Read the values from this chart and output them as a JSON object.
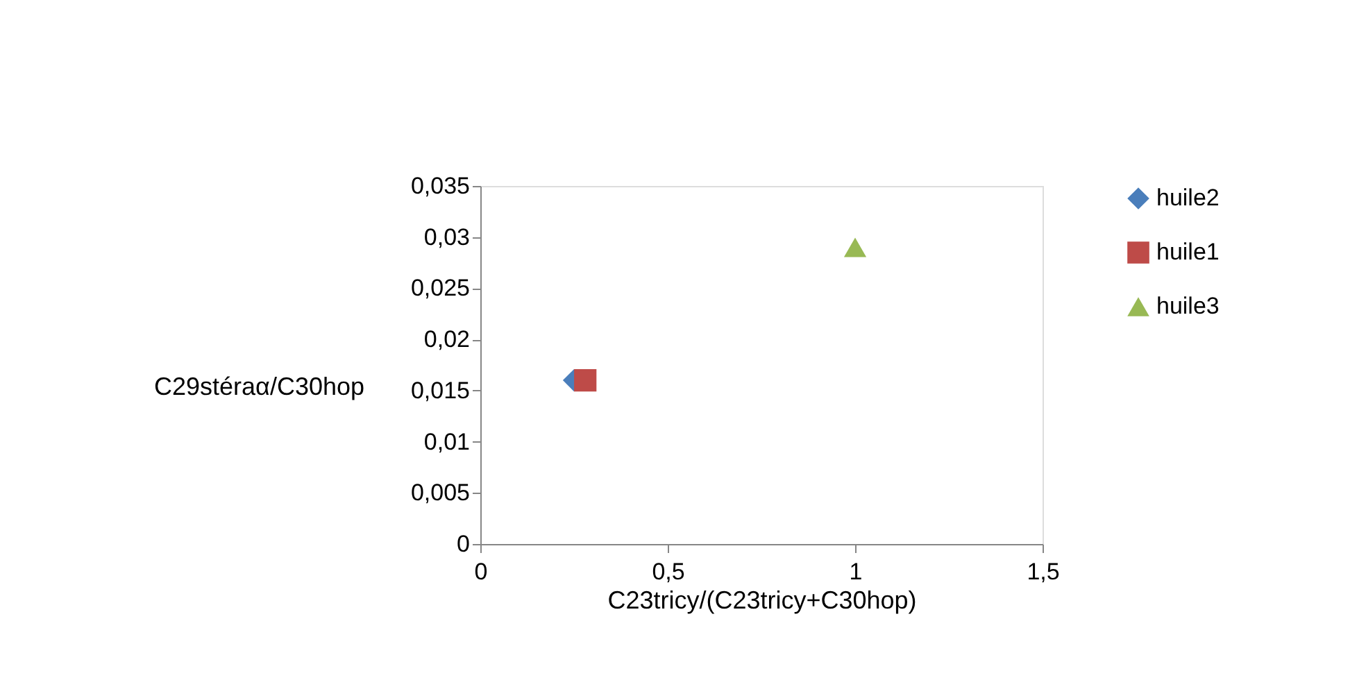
{
  "chart_data": {
    "type": "scatter",
    "xlabel": "C23tricy/(C23tricy+C30hop)",
    "ylabel": "C29stéraα/C30hop",
    "series": [
      {
        "name": "huile2",
        "color": "#4a7ebb",
        "marker": "diamond",
        "x": [
          0.25
        ],
        "values": [
          0.016
        ]
      },
      {
        "name": "huile1",
        "color": "#be4b48",
        "marker": "square",
        "x": [
          0.28
        ],
        "values": [
          0.016
        ]
      },
      {
        "name": "huile3",
        "color": "#98b954",
        "marker": "triangle",
        "x": [
          1.0
        ],
        "values": [
          0.029
        ]
      }
    ],
    "xlim": [
      0,
      1.5
    ],
    "xticks": [
      0,
      {
        "value": 0.5,
        "label": "0,5"
      },
      1,
      {
        "value": 1.5,
        "label": "1,5"
      }
    ],
    "ylim": [
      0,
      0.035
    ],
    "yticks": [
      0,
      {
        "value": 0.005,
        "label": "0,005"
      },
      {
        "value": 0.01,
        "label": "0,01"
      },
      {
        "value": 0.015,
        "label": "0,015"
      },
      {
        "value": 0.02,
        "label": "0,02"
      },
      {
        "value": 0.025,
        "label": "0,025"
      },
      {
        "value": 0.03,
        "label": "0,03"
      },
      {
        "value": 0.035,
        "label": "0,035"
      }
    ],
    "grid": false,
    "legend": "right"
  }
}
